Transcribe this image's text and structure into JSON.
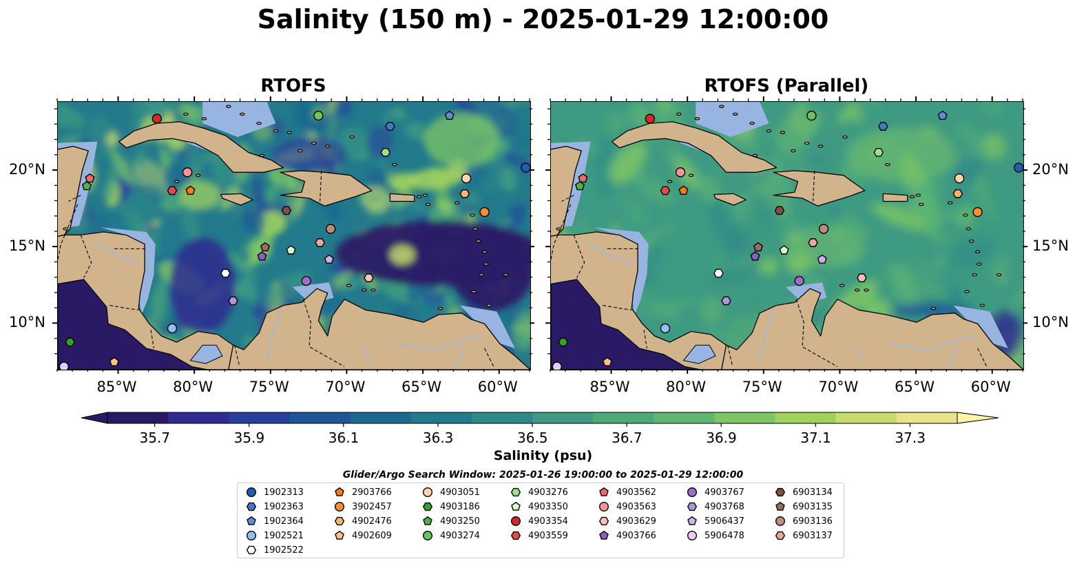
{
  "title": "Salinity (150 m) - 2025-01-29 12:00:00",
  "panels": [
    {
      "title": "RTOFS"
    },
    {
      "title": "RTOFS (Parallel)"
    }
  ],
  "axes": {
    "x_ticks": [
      "85°W",
      "80°W",
      "75°W",
      "70°W",
      "65°W",
      "60°W"
    ],
    "y_ticks": [
      "20°N",
      "15°N",
      "10°N"
    ]
  },
  "colorbar": {
    "label": "Salinity (psu)",
    "ticks": [
      "35.7",
      "35.9",
      "36.1",
      "36.3",
      "36.5",
      "36.7",
      "36.9",
      "37.1",
      "37.3"
    ],
    "colors": [
      "#2a1a66",
      "#2f2b8f",
      "#263f9a",
      "#1d5597",
      "#1b6990",
      "#237a8c",
      "#2f8a87",
      "#3e9a82",
      "#4ea97a",
      "#5eb672",
      "#7dc565",
      "#9fd15d",
      "#c4dc6b",
      "#e6e58a"
    ],
    "extend_low": "#2a1a66",
    "extend_high": "#fdf3a9"
  },
  "search_window": "Glider/Argo Search Window: 2025-01-26 19:00:00 to 2025-01-29 12:00:00",
  "chart_data": {
    "type": "heatmap",
    "title": "Salinity (150 m) - 2025-01-29 12:00:00",
    "xlim": [
      -89,
      -58
    ],
    "ylim": [
      7,
      24.5
    ],
    "colorbar_range": [
      35.6,
      37.4
    ],
    "xlabel": "",
    "ylabel": "",
    "land_color": "#d2b48c",
    "shelf_color": "#98b4e0",
    "platforms": [
      {
        "id": "1902313",
        "marker": "circle",
        "color": "#1f5fb3",
        "lon": -58.3,
        "lat": 20.2
      },
      {
        "id": "1902363",
        "marker": "hexagon",
        "color": "#3d7cc6",
        "lon": -67.2,
        "lat": 22.9
      },
      {
        "id": "1902364",
        "marker": "pentagon",
        "color": "#5b8fd4",
        "lon": -63.3,
        "lat": 23.6
      },
      {
        "id": "1902521",
        "marker": "circle",
        "color": "#8ec2f0",
        "lon": -81.5,
        "lat": 9.7
      },
      {
        "id": "1902522",
        "marker": "hexagon",
        "color": "#ffffff",
        "lon": -78.0,
        "lat": 13.3
      },
      {
        "id": "2903766",
        "marker": "pentagon",
        "color": "#f57f0e",
        "lon": -80.3,
        "lat": 18.7
      },
      {
        "id": "3902457",
        "marker": "circle",
        "color": "#fa8e2c",
        "lon": -61.0,
        "lat": 17.3
      },
      {
        "id": "4902476",
        "marker": "hexagon",
        "color": "#fdb56a",
        "lon": -62.3,
        "lat": 18.5
      },
      {
        "id": "4902609",
        "marker": "pentagon",
        "color": "#fdc088",
        "lon": -85.3,
        "lat": 7.5
      },
      {
        "id": "4903051",
        "marker": "circle",
        "color": "#ffd6b0",
        "lon": -62.2,
        "lat": 19.5
      },
      {
        "id": "4903186",
        "marker": "hexagon",
        "color": "#33a02c",
        "lon": -88.2,
        "lat": 8.8
      },
      {
        "id": "4903250",
        "marker": "pentagon",
        "color": "#4bb543",
        "lon": -87.1,
        "lat": 19.0
      },
      {
        "id": "4903274",
        "marker": "circle",
        "color": "#66c55e",
        "lon": -71.9,
        "lat": 23.6
      },
      {
        "id": "4903276",
        "marker": "hexagon",
        "color": "#9de08f",
        "lon": -67.5,
        "lat": 21.2
      },
      {
        "id": "4903350",
        "marker": "pentagon",
        "color": "#d5ffc8",
        "lon": -73.7,
        "lat": 14.8
      },
      {
        "id": "4903354",
        "marker": "circle",
        "color": "#d62728",
        "lon": -82.5,
        "lat": 23.4
      },
      {
        "id": "4903559",
        "marker": "hexagon",
        "color": "#e34a4a",
        "lon": -81.5,
        "lat": 18.7
      },
      {
        "id": "4903562",
        "marker": "pentagon",
        "color": "#ee6b6b",
        "lon": -86.9,
        "lat": 19.5
      },
      {
        "id": "4903563",
        "marker": "circle",
        "color": "#f59593",
        "lon": -80.5,
        "lat": 19.9
      },
      {
        "id": "4903629",
        "marker": "hexagon",
        "color": "#ffbcbc",
        "lon": -68.6,
        "lat": 13.0
      },
      {
        "id": "4903766",
        "marker": "pentagon",
        "color": "#8a5fbf",
        "lon": -75.6,
        "lat": 14.4
      },
      {
        "id": "4903767",
        "marker": "circle",
        "color": "#9d6fc8",
        "lon": -72.7,
        "lat": 12.8
      },
      {
        "id": "4903768",
        "marker": "hexagon",
        "color": "#b294dc",
        "lon": -77.5,
        "lat": 11.5
      },
      {
        "id": "5906437",
        "marker": "pentagon",
        "color": "#cdb0ec",
        "lon": -71.2,
        "lat": 14.2
      },
      {
        "id": "5906478",
        "marker": "circle",
        "color": "#e6ccf7",
        "lon": -88.6,
        "lat": 7.2
      },
      {
        "id": "6903134",
        "marker": "hexagon",
        "color": "#7e4f42",
        "lon": -74.0,
        "lat": 17.4
      },
      {
        "id": "6903135",
        "marker": "pentagon",
        "color": "#a06a5e",
        "lon": -75.4,
        "lat": 15.0
      },
      {
        "id": "6903136",
        "marker": "circle",
        "color": "#c08a80",
        "lon": -71.1,
        "lat": 16.2
      },
      {
        "id": "6903137",
        "marker": "hexagon",
        "color": "#e6a99f",
        "lon": -71.8,
        "lat": 15.3
      }
    ],
    "legend_columns": 7,
    "legend_placement": "bottom-center"
  }
}
